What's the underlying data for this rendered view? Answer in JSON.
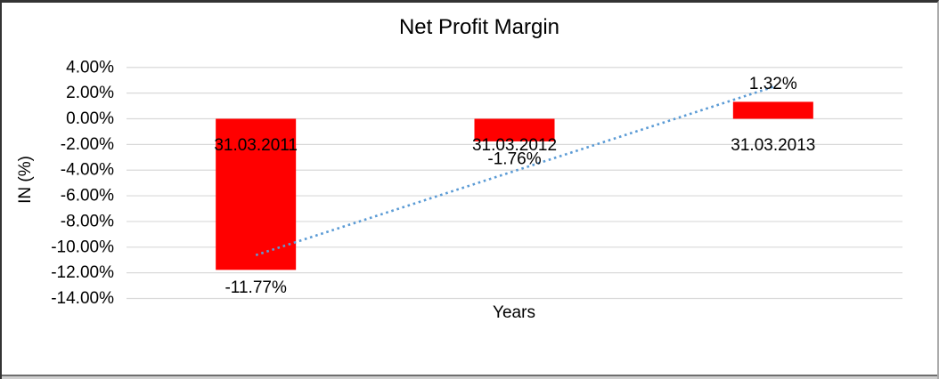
{
  "chart_data": {
    "type": "bar",
    "title": "Net Profit Margin",
    "xlabel": "Years",
    "ylabel": "IN (%)",
    "categories": [
      "31.03.2011",
      "31.03.2012",
      "31.03.2013"
    ],
    "values": [
      -11.77,
      -1.76,
      1.32
    ],
    "value_labels": [
      "-11.77%",
      "-1.76%",
      "1.32%"
    ],
    "ylim": [
      -14,
      4
    ],
    "ytick_step": 2,
    "yticks": [
      "4.00%",
      "2.00%",
      "0.00%",
      "-2.00%",
      "-4.00%",
      "-6.00%",
      "-8.00%",
      "-10.00%",
      "-12.00%",
      "-14.00%"
    ],
    "ytick_values": [
      4,
      2,
      0,
      -2,
      -4,
      -6,
      -8,
      -10,
      -12,
      -14
    ],
    "grid": true,
    "legend": "none",
    "bar_color": "#FF0000",
    "gridline_color": "#D9D9D9",
    "trendline": {
      "type": "linear",
      "style": "dotted",
      "color": "#5B9BD5",
      "start_value": -10.62,
      "end_value": 2.48
    }
  }
}
